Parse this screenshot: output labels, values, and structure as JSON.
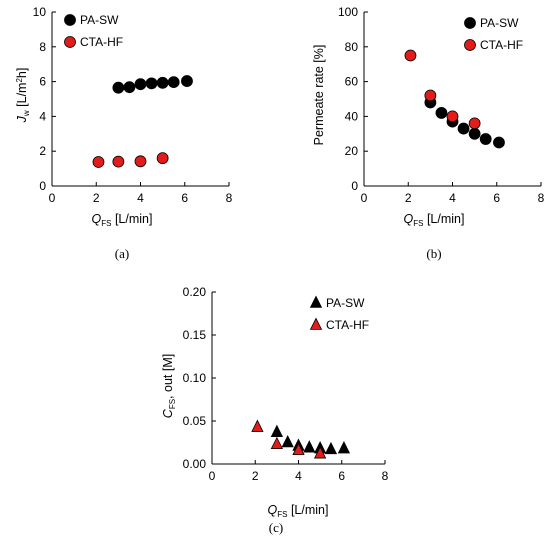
{
  "chart_data": [
    {
      "type": "scatter",
      "panel_label": "(a)",
      "xlabel": {
        "main": "Q",
        "sub": "FS",
        "rest": " [L/min]"
      },
      "ylabel": {
        "main": "J",
        "sub": "w",
        "rest": " [L/m",
        "sup": "2",
        "end": "h]"
      },
      "xlim": [
        0,
        8
      ],
      "ylim": [
        0,
        10
      ],
      "xticks": [
        0,
        2,
        4,
        6,
        8
      ],
      "yticks": [
        0,
        2,
        4,
        6,
        8,
        10
      ],
      "legend_position": "top-left",
      "grid": false,
      "series": [
        {
          "name": "PA-SW",
          "marker": "circle",
          "color": "#000000",
          "points": [
            [
              3.0,
              5.65
            ],
            [
              3.5,
              5.68
            ],
            [
              4.0,
              5.85
            ],
            [
              4.5,
              5.9
            ],
            [
              5.0,
              5.93
            ],
            [
              5.5,
              5.97
            ],
            [
              6.1,
              6.03
            ]
          ]
        },
        {
          "name": "CTA-HF",
          "marker": "circle",
          "color": "#e21b1b",
          "points": [
            [
              2.1,
              1.38
            ],
            [
              3.0,
              1.4
            ],
            [
              4.0,
              1.42
            ],
            [
              5.0,
              1.6
            ]
          ]
        }
      ]
    },
    {
      "type": "scatter",
      "panel_label": "(b)",
      "xlabel": {
        "main": "Q",
        "sub": "FS",
        "rest": " [L/min]"
      },
      "ylabel": {
        "main": "Permeate rate [%]"
      },
      "xlim": [
        0,
        8
      ],
      "ylim": [
        0,
        100
      ],
      "xticks": [
        0,
        2,
        4,
        6,
        8
      ],
      "yticks": [
        0,
        20,
        40,
        60,
        80,
        100
      ],
      "legend_position": "top-right",
      "grid": false,
      "series": [
        {
          "name": "PA-SW",
          "marker": "circle",
          "color": "#000000",
          "points": [
            [
              3.0,
              48
            ],
            [
              3.5,
              42
            ],
            [
              4.0,
              37
            ],
            [
              4.5,
              33
            ],
            [
              5.0,
              30
            ],
            [
              5.5,
              27
            ],
            [
              6.1,
              25
            ]
          ]
        },
        {
          "name": "CTA-HF",
          "marker": "circle",
          "color": "#e21b1b",
          "points": [
            [
              2.1,
              75
            ],
            [
              3.0,
              52
            ],
            [
              4.0,
              40
            ],
            [
              5.0,
              36
            ]
          ]
        }
      ]
    },
    {
      "type": "scatter",
      "panel_label": "(c)",
      "xlabel": {
        "main": "Q",
        "sub": "FS",
        "rest": " [L/min]"
      },
      "ylabel": {
        "main": "C",
        "sub": "FS",
        "rest": ", out [M]"
      },
      "xlim": [
        0,
        8
      ],
      "ylim": [
        0,
        0.2
      ],
      "xticks": [
        0,
        2,
        4,
        6,
        8
      ],
      "yticks": [
        0,
        0.05,
        0.1,
        0.15,
        0.2
      ],
      "ytick_labels": [
        "0.00",
        "0.05",
        "0.10",
        "0.15",
        "0.20"
      ],
      "legend_position": "top-right",
      "grid": false,
      "series": [
        {
          "name": "PA-SW",
          "marker": "triangle",
          "color": "#000000",
          "points": [
            [
              3.0,
              0.037
            ],
            [
              3.5,
              0.025
            ],
            [
              4.0,
              0.021
            ],
            [
              4.5,
              0.019
            ],
            [
              5.0,
              0.018
            ],
            [
              5.5,
              0.017
            ],
            [
              6.1,
              0.018
            ]
          ]
        },
        {
          "name": "CTA-HF",
          "marker": "triangle",
          "color": "#e21b1b",
          "points": [
            [
              2.1,
              0.043
            ],
            [
              3.0,
              0.023
            ],
            [
              4.0,
              0.016
            ],
            [
              5.0,
              0.012
            ]
          ]
        }
      ]
    }
  ]
}
